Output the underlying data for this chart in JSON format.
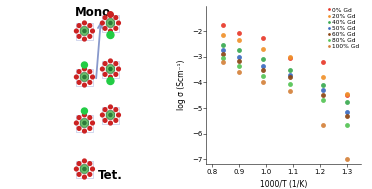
{
  "legend_labels": [
    "0% Gd",
    "20% Gd",
    "40% Gd",
    "50% Gd",
    "60% Gd",
    "80% Gd",
    "100% Gd"
  ],
  "series_colors": [
    "#e8392a",
    "#f0922b",
    "#3aaa50",
    "#3a6abf",
    "#8b4513",
    "#55c455",
    "#d4813a"
  ],
  "xlabel": "1000/T (1/K)",
  "ylabel": "log σ (Scm⁻¹)",
  "xlim": [
    0.78,
    1.35
  ],
  "ylim": [
    -7.2,
    -1.0
  ],
  "xticks": [
    0.8,
    0.9,
    1.0,
    1.1,
    1.2,
    1.3
  ],
  "yticks": [
    -7,
    -6,
    -5,
    -4,
    -3,
    -2
  ],
  "background_color": "#ffffff",
  "data": {
    "0% Gd": {
      "x": [
        0.84,
        0.9,
        0.99,
        1.09,
        1.21,
        1.3
      ],
      "y": [
        -1.75,
        -2.05,
        -2.25,
        -3.05,
        -3.2,
        -4.5
      ]
    },
    "20% Gd": {
      "x": [
        0.84,
        0.9,
        0.99,
        1.09,
        1.21,
        1.3
      ],
      "y": [
        -2.15,
        -2.35,
        -2.7,
        -3.0,
        -3.8,
        -4.45
      ]
    },
    "40% Gd": {
      "x": [
        0.84,
        0.9,
        0.99,
        1.09,
        1.21,
        1.3
      ],
      "y": [
        -2.55,
        -2.75,
        -3.1,
        -3.5,
        -4.1,
        -4.75
      ]
    },
    "50% Gd": {
      "x": [
        0.84,
        0.9,
        0.99,
        1.09,
        1.21,
        1.3
      ],
      "y": [
        -2.75,
        -3.0,
        -3.35,
        -3.7,
        -4.3,
        -5.15
      ]
    },
    "60% Gd": {
      "x": [
        0.84,
        0.9,
        0.99,
        1.09,
        1.21,
        1.3
      ],
      "y": [
        -2.9,
        -3.15,
        -3.5,
        -3.8,
        -4.5,
        -5.3
      ]
    },
    "80% Gd": {
      "x": [
        0.84,
        0.9,
        0.99,
        1.09,
        1.21,
        1.3
      ],
      "y": [
        -3.05,
        -3.35,
        -3.75,
        -4.05,
        -4.7,
        -5.65
      ]
    },
    "100% Gd": {
      "x": [
        0.84,
        0.9,
        0.99,
        1.09,
        1.21,
        1.3
      ],
      "y": [
        -3.2,
        -3.6,
        -4.0,
        -4.35,
        -5.65,
        -7.0
      ]
    }
  },
  "mono_label": "Mono.",
  "tet_label": "Tet.",
  "axis_fontsize": 5.5,
  "tick_fontsize": 5,
  "legend_fontsize": 4.2,
  "marker_size": 3.5,
  "color_green_dark": "#2d7a3a",
  "color_green_light": "#6abf6a",
  "color_red": "#cc2222",
  "color_frame": "#c0c8e8",
  "color_arrow": "#8899cc"
}
